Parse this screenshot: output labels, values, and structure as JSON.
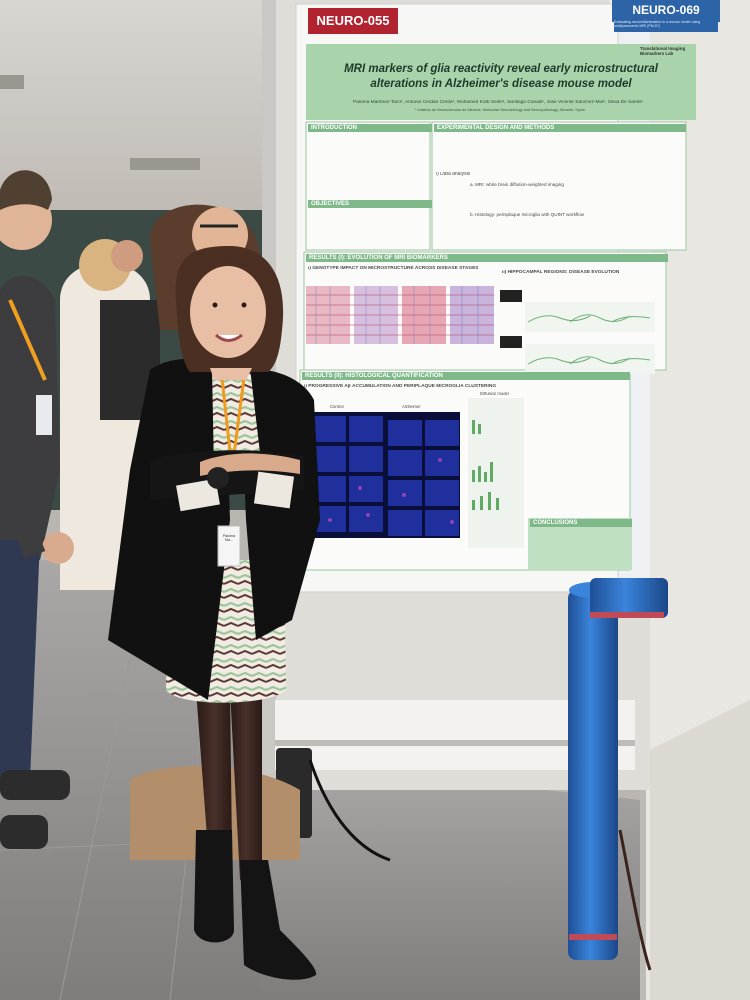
{
  "poster": {
    "id_tag": "NEURO-055",
    "title_line1": "MRI markers of glia reactivity reveal early microstructural",
    "title_line2": "alterations in Alzheimer's disease mouse model",
    "authors": "Paloma Martínez-Tazo¹, Antonio Cerdán Cerdá¹, Mohamed Kotb Selim¹, Santiago Canals¹, Jose Vicente Sánchez-Mut¹, Silvia De Santis¹",
    "affiliation": "¹ Instituto de Neurociencias de Alicante, Molecular Neurobiology and Neuropathology, Alicante, Spain",
    "lab_logo": "Translational Imaging Biomarkers Lab",
    "sections": {
      "introduction": "INTRODUCTION",
      "objectives": "OBJECTIVES",
      "experimental": "EXPERIMENTAL DESIGN AND METHODS",
      "data_analysis": "i) Data analysis",
      "mri_label": "a. MRI: white brain diffusion-weighted imaging",
      "histology_label": "b. Histology: perisplaque microglia with QUINT workflow",
      "results_1": "RESULTS (I): EVOLUTION OF MRI BIOMARKERS",
      "genotype": "i) GENOTYPE IMPACT ON MICROSTRUCTURE ACROSS DISEASE STAGES",
      "hippocampal": "ii) HIPPOCAMPAL REGIONS: DISEASE EVOLUTION",
      "results_2": "RESULTS (II): HISTOLOGICAL QUANTIFICATION",
      "progressive": "i) PROGRESSIVE Aβ ACCUMULATION AND PERIPLAQUE MICROGLIA CLUSTERING",
      "conclusions": "CONCLUSIONS",
      "control": "Control",
      "alzheimer": "Alzheimer",
      "diffusion_model": "Diffusion model"
    }
  },
  "neighbor_poster": {
    "id_tag": "NEURO-069",
    "subtitle": "Evaluating neuroinflammation in a mouse model using multiparametric MRI (PM-57)"
  },
  "person": {
    "badge_text": "Paloma Ma..."
  },
  "colors": {
    "poster_green": "#7fb98a",
    "tag_red": "#b0232f",
    "tag_blue": "#2d64a8",
    "tube_blue": "#2f73c9",
    "jacket": "#111111"
  }
}
